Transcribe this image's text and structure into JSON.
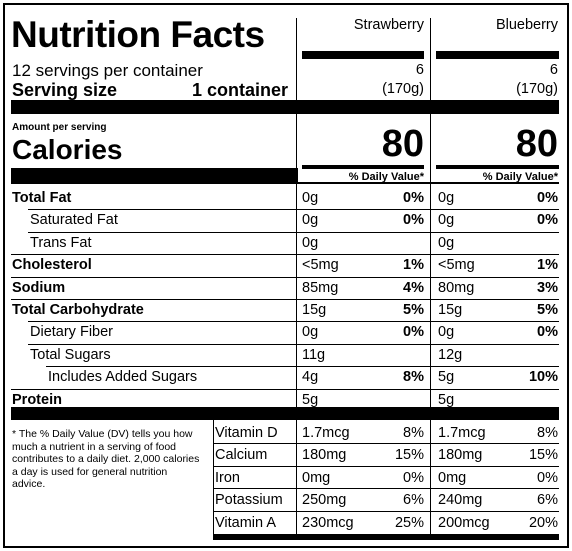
{
  "title": "Nutrition Facts",
  "servings_per_container": "12 servings per container",
  "serving_size_label": "Serving size",
  "serving_size_value": "1 container",
  "amount_per_serving": "Amount per serving",
  "calories_label": "Calories",
  "dv_header": "% Daily Value*",
  "products": [
    {
      "name": "Strawberry",
      "servings": "6",
      "serving_weight": "(170g)",
      "calories": "80",
      "nutrients": [
        {
          "amount": "0g",
          "dv": "0%"
        },
        {
          "amount": "0g",
          "dv": "0%"
        },
        {
          "amount": "0g",
          "dv": ""
        },
        {
          "amount": "<5mg",
          "dv": "1%"
        },
        {
          "amount": "85mg",
          "dv": "4%"
        },
        {
          "amount": "15g",
          "dv": "5%"
        },
        {
          "amount": "0g",
          "dv": "0%"
        },
        {
          "amount": "11g",
          "dv": ""
        },
        {
          "amount": "4g",
          "dv": "8%"
        },
        {
          "amount": "5g",
          "dv": ""
        }
      ],
      "vitamins": [
        {
          "amount": "1.7mcg",
          "dv": "8%"
        },
        {
          "amount": "180mg",
          "dv": "15%"
        },
        {
          "amount": "0mg",
          "dv": "0%"
        },
        {
          "amount": "250mg",
          "dv": "6%"
        },
        {
          "amount": "230mcg",
          "dv": "25%"
        }
      ]
    },
    {
      "name": "Blueberry",
      "servings": "6",
      "serving_weight": "(170g)",
      "calories": "80",
      "nutrients": [
        {
          "amount": "0g",
          "dv": "0%"
        },
        {
          "amount": "0g",
          "dv": "0%"
        },
        {
          "amount": "0g",
          "dv": ""
        },
        {
          "amount": "<5mg",
          "dv": "1%"
        },
        {
          "amount": "80mg",
          "dv": "3%"
        },
        {
          "amount": "15g",
          "dv": "5%"
        },
        {
          "amount": "0g",
          "dv": "0%"
        },
        {
          "amount": "12g",
          "dv": ""
        },
        {
          "amount": "5g",
          "dv": "10%"
        },
        {
          "amount": "5g",
          "dv": ""
        }
      ],
      "vitamins": [
        {
          "amount": "1.7mcg",
          "dv": "8%"
        },
        {
          "amount": "180mg",
          "dv": "15%"
        },
        {
          "amount": "0mg",
          "dv": "0%"
        },
        {
          "amount": "240mg",
          "dv": "6%"
        },
        {
          "amount": "200mcg",
          "dv": "20%"
        }
      ]
    }
  ],
  "nutrient_labels": [
    {
      "label": "Total Fat",
      "bold": true,
      "indent": 0
    },
    {
      "label": "Saturated Fat",
      "bold": false,
      "indent": 1
    },
    {
      "label": "Trans Fat",
      "bold": false,
      "indent": 1
    },
    {
      "label": "Cholesterol",
      "bold": true,
      "indent": 0
    },
    {
      "label": "Sodium",
      "bold": true,
      "indent": 0
    },
    {
      "label": "Total Carbohydrate",
      "bold": true,
      "indent": 0
    },
    {
      "label": "Dietary Fiber",
      "bold": false,
      "indent": 1
    },
    {
      "label": "Total Sugars",
      "bold": false,
      "indent": 1
    },
    {
      "label": "Includes Added Sugars",
      "bold": false,
      "indent": 2
    },
    {
      "label": "Protein",
      "bold": true,
      "indent": 0
    }
  ],
  "vitamin_labels": [
    "Vitamin D",
    "Calcium",
    "Iron",
    "Potassium",
    "Vitamin A"
  ],
  "footnote": "* The % Daily Value (DV) tells you how much a nutrient in a serving of food contributes to a daily diet. 2,000 calories a day is used for general nutrition advice."
}
